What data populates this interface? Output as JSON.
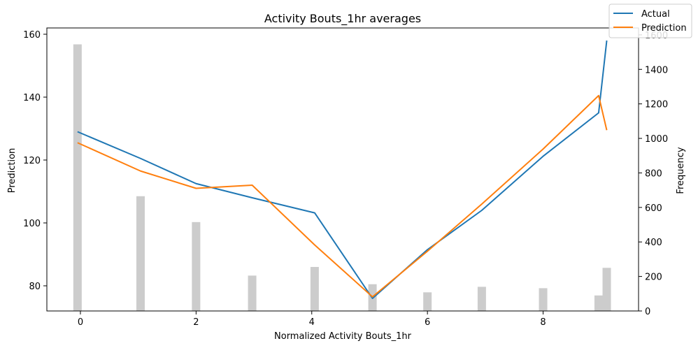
{
  "chart_data": {
    "type": "line",
    "title": "Activity Bouts_1hr averages",
    "xlabel": "Normalized Activity Bouts_1hr",
    "ylabel": "Prediction",
    "y2label": "Frequency",
    "xlim": [
      -0.58,
      9.65
    ],
    "ylim": [
      72,
      162
    ],
    "y2lim": [
      0,
      1640
    ],
    "xticks": [
      0,
      2,
      4,
      6,
      8
    ],
    "yticks": [
      80,
      100,
      120,
      140,
      160
    ],
    "y2ticks": [
      0,
      200,
      400,
      600,
      800,
      1000,
      1200,
      1400,
      1600
    ],
    "grid": false,
    "legend_position": "top-right",
    "series": [
      {
        "name": "Actual",
        "color": "#1f77b4",
        "x": [
          -0.05,
          1.04,
          2.0,
          2.97,
          4.05,
          5.05,
          6.0,
          6.94,
          8.0,
          8.96,
          9.1
        ],
        "y": [
          129.0,
          120.5,
          112.5,
          108.0,
          103.2,
          76.0,
          91.5,
          104.0,
          121.2,
          135.0,
          158.0
        ]
      },
      {
        "name": "Prediction",
        "color": "#ff7f0e",
        "x": [
          -0.05,
          1.04,
          2.0,
          2.97,
          4.05,
          5.05,
          6.0,
          6.94,
          8.0,
          8.96,
          9.1
        ],
        "y": [
          125.5,
          116.5,
          111.0,
          112.0,
          93.0,
          76.5,
          91.0,
          106.0,
          123.5,
          140.5,
          129.5
        ]
      }
    ],
    "histogram": {
      "color": "#cccccc",
      "x": [
        -0.05,
        1.04,
        2.0,
        2.97,
        4.05,
        5.05,
        6.0,
        6.94,
        8.0,
        8.96,
        9.1
      ],
      "counts": [
        1545,
        665,
        515,
        205,
        255,
        155,
        108,
        140,
        132,
        90,
        250
      ]
    }
  }
}
